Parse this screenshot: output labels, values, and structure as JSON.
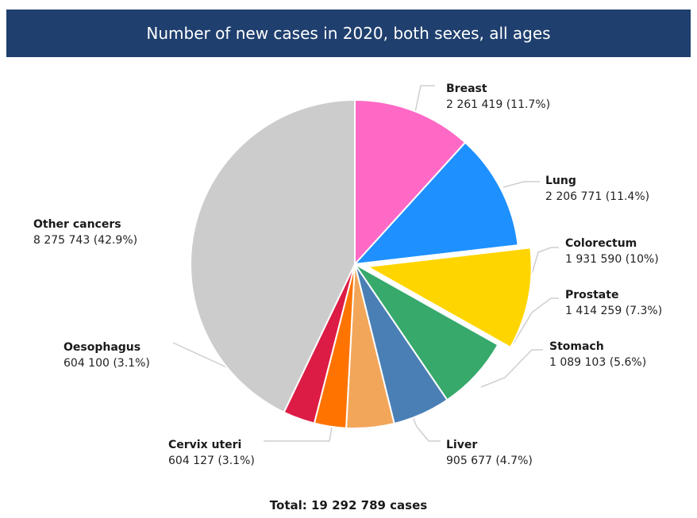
{
  "title": "Number of new cases in 2020, both sexes, all ages",
  "total": "Total: 19 292 789 cases",
  "chart_data": {
    "type": "pie",
    "title": "Number of new cases in 2020, both sexes, all ages",
    "slices": [
      {
        "name": "Breast",
        "value": 2261419,
        "value_text": "2 261 419 (11.7%)",
        "percent": 11.7,
        "color": "#ff69c6"
      },
      {
        "name": "Lung",
        "value": 2206771,
        "value_text": "2 206 771 (11.4%)",
        "percent": 11.4,
        "color": "#1e90ff"
      },
      {
        "name": "Colorectum",
        "value": 1931590,
        "value_text": "1 931 590 (10%)",
        "percent": 10,
        "color": "#ffd500",
        "exploded": true
      },
      {
        "name": "Prostate",
        "value": 1414259,
        "value_text": "1 414 259 (7.3%)",
        "percent": 7.3,
        "color": "#36a96b"
      },
      {
        "name": "Stomach",
        "value": 1089103,
        "value_text": "1 089 103 (5.6%)",
        "percent": 5.6,
        "color": "#4a7fb5"
      },
      {
        "name": "Liver",
        "value": 905677,
        "value_text": "905 677 (4.7%)",
        "percent": 4.7,
        "color": "#f2a65a"
      },
      {
        "name": "Cervix uteri",
        "value": 604127,
        "value_text": "604 127 (3.1%)",
        "percent": 3.1,
        "color": "#ff7400"
      },
      {
        "name": "Oesophagus",
        "value": 604100,
        "value_text": "604 100 (3.1%)",
        "percent": 3.1,
        "color": "#dc1c44"
      },
      {
        "name": "Other cancers",
        "value": 8275743,
        "value_text": "8 275 743 (42.9%)",
        "percent": 42.9,
        "color": "#cccccc"
      }
    ],
    "total_value": 19292789
  }
}
